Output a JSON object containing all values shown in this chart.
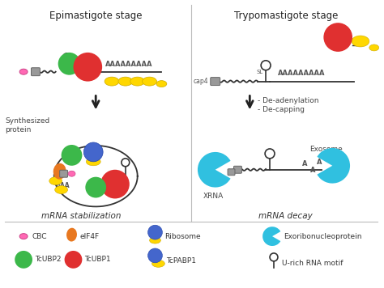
{
  "title_left": "Epimastigote stage",
  "title_right": "Trypomastigote stage",
  "label_bottom_left": "mRNA stabilization",
  "label_bottom_right": "mRNA decay",
  "bg_color": "#FFFFFF",
  "colors": {
    "CBC": "#FF69B4",
    "eIF4F": "#E87820",
    "TcUBP2": "#3CB84A",
    "TcUBP1": "#E03030",
    "TcPABP1": "#FFD700",
    "Ribosome_blue": "#4466CC",
    "Exoribonucleoprotein": "#30C0E0",
    "mRNA_line": "#333333",
    "arrow": "#222222",
    "text": "#333333",
    "cap_gray": "#999999"
  }
}
